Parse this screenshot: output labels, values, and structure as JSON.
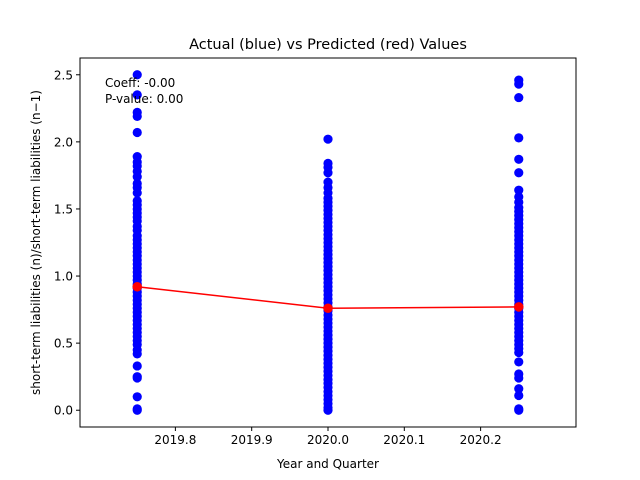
{
  "chart_data": {
    "type": "scatter",
    "title": "Actual (blue) vs Predicted (red) Values",
    "xlabel": "Year and Quarter",
    "ylabel": "short-term liabilities (n)/short-term liabilities (n−1)",
    "xlim": [
      2019.675,
      2020.325
    ],
    "ylim": [
      -0.125,
      2.625
    ],
    "grid": false,
    "x_ticks": [
      {
        "value": 2019.8,
        "label": "2019.8"
      },
      {
        "value": 2019.9,
        "label": "2019.9"
      },
      {
        "value": 2020.0,
        "label": "2020.0"
      },
      {
        "value": 2020.1,
        "label": "2020.1"
      },
      {
        "value": 2020.2,
        "label": "2020.2"
      }
    ],
    "y_ticks": [
      {
        "value": 0.0,
        "label": "0.0"
      },
      {
        "value": 0.5,
        "label": "0.5"
      },
      {
        "value": 1.0,
        "label": "1.0"
      },
      {
        "value": 1.5,
        "label": "1.5"
      },
      {
        "value": 2.0,
        "label": "2.0"
      },
      {
        "value": 2.5,
        "label": "2.5"
      }
    ],
    "annotations": [
      "Coeff: -0.00",
      "P-value: 0.00"
    ],
    "series": [
      {
        "kind": "scatter",
        "color": "#0000ff",
        "points": [
          {
            "x": 2019.75,
            "y": 2.5
          },
          {
            "x": 2019.75,
            "y": 2.35
          },
          {
            "x": 2019.75,
            "y": 2.22
          },
          {
            "x": 2019.75,
            "y": 2.19
          },
          {
            "x": 2019.75,
            "y": 2.07
          },
          {
            "x": 2019.75,
            "y": 1.89
          },
          {
            "x": 2019.75,
            "y": 1.85
          },
          {
            "x": 2019.75,
            "y": 1.82
          },
          {
            "x": 2019.75,
            "y": 1.78
          },
          {
            "x": 2019.75,
            "y": 1.74
          },
          {
            "x": 2019.75,
            "y": 1.69
          },
          {
            "x": 2019.75,
            "y": 1.66
          },
          {
            "x": 2019.75,
            "y": 1.62
          },
          {
            "x": 2019.75,
            "y": 1.56
          },
          {
            "x": 2019.75,
            "y": 1.53
          },
          {
            "x": 2019.75,
            "y": 1.5
          },
          {
            "x": 2019.75,
            "y": 1.47
          },
          {
            "x": 2019.75,
            "y": 1.44
          },
          {
            "x": 2019.75,
            "y": 1.41
          },
          {
            "x": 2019.75,
            "y": 1.37
          },
          {
            "x": 2019.75,
            "y": 1.34
          },
          {
            "x": 2019.75,
            "y": 1.3
          },
          {
            "x": 2019.75,
            "y": 1.27
          },
          {
            "x": 2019.75,
            "y": 1.24
          },
          {
            "x": 2019.75,
            "y": 1.21
          },
          {
            "x": 2019.75,
            "y": 1.18
          },
          {
            "x": 2019.75,
            "y": 1.15
          },
          {
            "x": 2019.75,
            "y": 1.12
          },
          {
            "x": 2019.75,
            "y": 1.09
          },
          {
            "x": 2019.75,
            "y": 1.06
          },
          {
            "x": 2019.75,
            "y": 1.03
          },
          {
            "x": 2019.75,
            "y": 1.0
          },
          {
            "x": 2019.75,
            "y": 0.97
          },
          {
            "x": 2019.75,
            "y": 0.94
          },
          {
            "x": 2019.75,
            "y": 0.91
          },
          {
            "x": 2019.75,
            "y": 0.88
          },
          {
            "x": 2019.75,
            "y": 0.85
          },
          {
            "x": 2019.75,
            "y": 0.82
          },
          {
            "x": 2019.75,
            "y": 0.79
          },
          {
            "x": 2019.75,
            "y": 0.76
          },
          {
            "x": 2019.75,
            "y": 0.73
          },
          {
            "x": 2019.75,
            "y": 0.7
          },
          {
            "x": 2019.75,
            "y": 0.67
          },
          {
            "x": 2019.75,
            "y": 0.64
          },
          {
            "x": 2019.75,
            "y": 0.61
          },
          {
            "x": 2019.75,
            "y": 0.58
          },
          {
            "x": 2019.75,
            "y": 0.55
          },
          {
            "x": 2019.75,
            "y": 0.52
          },
          {
            "x": 2019.75,
            "y": 0.49
          },
          {
            "x": 2019.75,
            "y": 0.45
          },
          {
            "x": 2019.75,
            "y": 0.42
          },
          {
            "x": 2019.75,
            "y": 0.33
          },
          {
            "x": 2019.75,
            "y": 0.25
          },
          {
            "x": 2019.75,
            "y": 0.24
          },
          {
            "x": 2019.75,
            "y": 0.1
          },
          {
            "x": 2019.75,
            "y": 0.01
          },
          {
            "x": 2019.75,
            "y": 0.0
          },
          {
            "x": 2020.0,
            "y": 2.02
          },
          {
            "x": 2020.0,
            "y": 1.84
          },
          {
            "x": 2020.0,
            "y": 1.81
          },
          {
            "x": 2020.0,
            "y": 1.77
          },
          {
            "x": 2020.0,
            "y": 1.7
          },
          {
            "x": 2020.0,
            "y": 1.66
          },
          {
            "x": 2020.0,
            "y": 1.62
          },
          {
            "x": 2020.0,
            "y": 1.58
          },
          {
            "x": 2020.0,
            "y": 1.55
          },
          {
            "x": 2020.0,
            "y": 1.52
          },
          {
            "x": 2020.0,
            "y": 1.49
          },
          {
            "x": 2020.0,
            "y": 1.46
          },
          {
            "x": 2020.0,
            "y": 1.43
          },
          {
            "x": 2020.0,
            "y": 1.4
          },
          {
            "x": 2020.0,
            "y": 1.37
          },
          {
            "x": 2020.0,
            "y": 1.34
          },
          {
            "x": 2020.0,
            "y": 1.31
          },
          {
            "x": 2020.0,
            "y": 1.28
          },
          {
            "x": 2020.0,
            "y": 1.25
          },
          {
            "x": 2020.0,
            "y": 1.22
          },
          {
            "x": 2020.0,
            "y": 1.19
          },
          {
            "x": 2020.0,
            "y": 1.16
          },
          {
            "x": 2020.0,
            "y": 1.13
          },
          {
            "x": 2020.0,
            "y": 1.1
          },
          {
            "x": 2020.0,
            "y": 1.07
          },
          {
            "x": 2020.0,
            "y": 1.04
          },
          {
            "x": 2020.0,
            "y": 1.01
          },
          {
            "x": 2020.0,
            "y": 0.98
          },
          {
            "x": 2020.0,
            "y": 0.95
          },
          {
            "x": 2020.0,
            "y": 0.92
          },
          {
            "x": 2020.0,
            "y": 0.89
          },
          {
            "x": 2020.0,
            "y": 0.86
          },
          {
            "x": 2020.0,
            "y": 0.83
          },
          {
            "x": 2020.0,
            "y": 0.8
          },
          {
            "x": 2020.0,
            "y": 0.77
          },
          {
            "x": 2020.0,
            "y": 0.74
          },
          {
            "x": 2020.0,
            "y": 0.71
          },
          {
            "x": 2020.0,
            "y": 0.68
          },
          {
            "x": 2020.0,
            "y": 0.65
          },
          {
            "x": 2020.0,
            "y": 0.62
          },
          {
            "x": 2020.0,
            "y": 0.59
          },
          {
            "x": 2020.0,
            "y": 0.56
          },
          {
            "x": 2020.0,
            "y": 0.53
          },
          {
            "x": 2020.0,
            "y": 0.5
          },
          {
            "x": 2020.0,
            "y": 0.47
          },
          {
            "x": 2020.0,
            "y": 0.44
          },
          {
            "x": 2020.0,
            "y": 0.41
          },
          {
            "x": 2020.0,
            "y": 0.38
          },
          {
            "x": 2020.0,
            "y": 0.35
          },
          {
            "x": 2020.0,
            "y": 0.32
          },
          {
            "x": 2020.0,
            "y": 0.29
          },
          {
            "x": 2020.0,
            "y": 0.26
          },
          {
            "x": 2020.0,
            "y": 0.23
          },
          {
            "x": 2020.0,
            "y": 0.2
          },
          {
            "x": 2020.0,
            "y": 0.17
          },
          {
            "x": 2020.0,
            "y": 0.14
          },
          {
            "x": 2020.0,
            "y": 0.11
          },
          {
            "x": 2020.0,
            "y": 0.08
          },
          {
            "x": 2020.0,
            "y": 0.05
          },
          {
            "x": 2020.0,
            "y": 0.02
          },
          {
            "x": 2020.0,
            "y": 0.0
          },
          {
            "x": 2020.25,
            "y": 2.46
          },
          {
            "x": 2020.25,
            "y": 2.43
          },
          {
            "x": 2020.25,
            "y": 2.33
          },
          {
            "x": 2020.25,
            "y": 2.03
          },
          {
            "x": 2020.25,
            "y": 1.87
          },
          {
            "x": 2020.25,
            "y": 1.77
          },
          {
            "x": 2020.25,
            "y": 1.64
          },
          {
            "x": 2020.25,
            "y": 1.59
          },
          {
            "x": 2020.25,
            "y": 1.55
          },
          {
            "x": 2020.25,
            "y": 1.51
          },
          {
            "x": 2020.25,
            "y": 1.48
          },
          {
            "x": 2020.25,
            "y": 1.45
          },
          {
            "x": 2020.25,
            "y": 1.42
          },
          {
            "x": 2020.25,
            "y": 1.39
          },
          {
            "x": 2020.25,
            "y": 1.36
          },
          {
            "x": 2020.25,
            "y": 1.33
          },
          {
            "x": 2020.25,
            "y": 1.3
          },
          {
            "x": 2020.25,
            "y": 1.27
          },
          {
            "x": 2020.25,
            "y": 1.24
          },
          {
            "x": 2020.25,
            "y": 1.21
          },
          {
            "x": 2020.25,
            "y": 1.18
          },
          {
            "x": 2020.25,
            "y": 1.15
          },
          {
            "x": 2020.25,
            "y": 1.12
          },
          {
            "x": 2020.25,
            "y": 1.09
          },
          {
            "x": 2020.25,
            "y": 1.06
          },
          {
            "x": 2020.25,
            "y": 1.03
          },
          {
            "x": 2020.25,
            "y": 1.0
          },
          {
            "x": 2020.25,
            "y": 0.97
          },
          {
            "x": 2020.25,
            "y": 0.94
          },
          {
            "x": 2020.25,
            "y": 0.91
          },
          {
            "x": 2020.25,
            "y": 0.88
          },
          {
            "x": 2020.25,
            "y": 0.85
          },
          {
            "x": 2020.25,
            "y": 0.82
          },
          {
            "x": 2020.25,
            "y": 0.79
          },
          {
            "x": 2020.25,
            "y": 0.76
          },
          {
            "x": 2020.25,
            "y": 0.73
          },
          {
            "x": 2020.25,
            "y": 0.7
          },
          {
            "x": 2020.25,
            "y": 0.67
          },
          {
            "x": 2020.25,
            "y": 0.64
          },
          {
            "x": 2020.25,
            "y": 0.61
          },
          {
            "x": 2020.25,
            "y": 0.58
          },
          {
            "x": 2020.25,
            "y": 0.55
          },
          {
            "x": 2020.25,
            "y": 0.52
          },
          {
            "x": 2020.25,
            "y": 0.49
          },
          {
            "x": 2020.25,
            "y": 0.46
          },
          {
            "x": 2020.25,
            "y": 0.43
          },
          {
            "x": 2020.25,
            "y": 0.36
          },
          {
            "x": 2020.25,
            "y": 0.27
          },
          {
            "x": 2020.25,
            "y": 0.24
          },
          {
            "x": 2020.25,
            "y": 0.16
          },
          {
            "x": 2020.25,
            "y": 0.11
          },
          {
            "x": 2020.25,
            "y": 0.01
          },
          {
            "x": 2020.25,
            "y": 0.0
          }
        ]
      },
      {
        "kind": "line",
        "color": "#ff0000",
        "points": [
          {
            "x": 2019.75,
            "y": 0.92
          },
          {
            "x": 2020.0,
            "y": 0.76
          },
          {
            "x": 2020.25,
            "y": 0.77
          }
        ]
      }
    ]
  }
}
